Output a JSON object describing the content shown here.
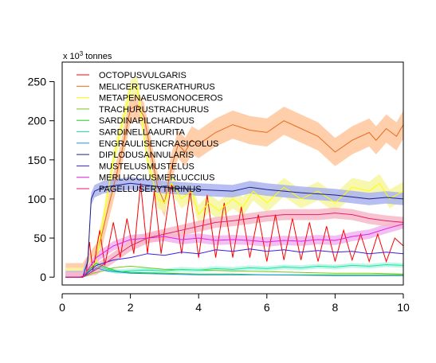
{
  "chart_data": {
    "type": "line",
    "unit_label": {
      "prefix": "x 10",
      "exponent": "3",
      "suffix": " tonnes"
    },
    "xlim": [
      0,
      10
    ],
    "ylim": [
      -10,
      275
    ],
    "x_ticks": [
      0,
      2,
      4,
      6,
      8,
      10
    ],
    "y_ticks": [
      0,
      50,
      100,
      150,
      200,
      250
    ],
    "legend_placement": "top-left",
    "grid": false,
    "series": [
      {
        "name": "OCTOPUSVULGARIS",
        "color": "#ff0000",
        "points": [
          [
            0.1,
            0
          ],
          [
            0.5,
            0
          ],
          [
            0.7,
            2
          ],
          [
            0.8,
            45
          ],
          [
            0.9,
            8
          ],
          [
            1.1,
            60
          ],
          [
            1.25,
            15
          ],
          [
            1.5,
            70
          ],
          [
            1.7,
            25
          ],
          [
            1.9,
            75
          ],
          [
            2.1,
            30
          ],
          [
            2.3,
            120
          ],
          [
            2.5,
            30
          ],
          [
            2.7,
            110
          ],
          [
            2.9,
            30
          ],
          [
            3.2,
            120
          ],
          [
            3.5,
            30
          ],
          [
            3.75,
            110
          ],
          [
            4.0,
            25
          ],
          [
            4.25,
            105
          ],
          [
            4.5,
            25
          ],
          [
            4.75,
            95
          ],
          [
            5.0,
            25
          ],
          [
            5.25,
            90
          ],
          [
            5.5,
            25
          ],
          [
            5.75,
            80
          ],
          [
            6.0,
            20
          ],
          [
            6.25,
            80
          ],
          [
            6.5,
            22
          ],
          [
            6.75,
            75
          ],
          [
            7.0,
            22
          ],
          [
            7.25,
            70
          ],
          [
            7.5,
            20
          ],
          [
            7.75,
            65
          ],
          [
            8.0,
            20
          ],
          [
            8.25,
            60
          ],
          [
            8.5,
            22
          ],
          [
            8.75,
            55
          ],
          [
            9.0,
            20
          ],
          [
            9.25,
            55
          ],
          [
            9.5,
            20
          ],
          [
            9.75,
            50
          ],
          [
            10.0,
            40
          ]
        ]
      },
      {
        "name": "MELICERTUSKERATHURUS",
        "color": "#e66a1a",
        "band": {
          "color": "#ffc79e",
          "halfwidth": 18
        },
        "points": [
          [
            0.1,
            0
          ],
          [
            0.6,
            0
          ],
          [
            1.0,
            25
          ],
          [
            1.3,
            80
          ],
          [
            1.7,
            150
          ],
          [
            2.0,
            215
          ],
          [
            2.2,
            220
          ],
          [
            2.4,
            205
          ],
          [
            2.6,
            160
          ],
          [
            2.8,
            115
          ],
          [
            3.0,
            95
          ],
          [
            3.2,
            140
          ],
          [
            3.4,
            170
          ],
          [
            3.6,
            160
          ],
          [
            3.8,
            175
          ],
          [
            4.0,
            170
          ],
          [
            4.5,
            185
          ],
          [
            5.0,
            195
          ],
          [
            5.5,
            188
          ],
          [
            6.0,
            185
          ],
          [
            6.5,
            200
          ],
          [
            7.0,
            190
          ],
          [
            7.5,
            180
          ],
          [
            8.0,
            160
          ],
          [
            8.5,
            175
          ],
          [
            9.0,
            185
          ],
          [
            9.2,
            175
          ],
          [
            9.5,
            190
          ],
          [
            9.8,
            180
          ],
          [
            10.0,
            195
          ]
        ]
      },
      {
        "name": "METAPENAEUSMONOCEROS",
        "color": "#ffff00",
        "band": {
          "color": "#f6f7a0",
          "halfwidth": 12
        },
        "points": [
          [
            0.1,
            0
          ],
          [
            0.6,
            0
          ],
          [
            1.0,
            20
          ],
          [
            1.5,
            150
          ],
          [
            2.0,
            240
          ],
          [
            2.2,
            245
          ],
          [
            2.5,
            150
          ],
          [
            2.8,
            100
          ],
          [
            3.0,
            95
          ],
          [
            3.2,
            120
          ],
          [
            3.5,
            100
          ],
          [
            3.8,
            110
          ],
          [
            4.0,
            80
          ],
          [
            4.3,
            95
          ],
          [
            4.6,
            85
          ],
          [
            5.0,
            100
          ],
          [
            5.3,
            90
          ],
          [
            5.6,
            110
          ],
          [
            6.0,
            95
          ],
          [
            6.5,
            115
          ],
          [
            7.0,
            100
          ],
          [
            7.5,
            110
          ],
          [
            8.0,
            95
          ],
          [
            8.5,
            115
          ],
          [
            9.0,
            110
          ],
          [
            9.3,
            120
          ],
          [
            9.6,
            100
          ],
          [
            10.0,
            110
          ]
        ]
      },
      {
        "name": "TRACHURUSTRACHURUS",
        "color": "#77c91a",
        "points": [
          [
            0.1,
            0
          ],
          [
            0.6,
            0
          ],
          [
            0.9,
            5
          ],
          [
            1.2,
            8
          ],
          [
            1.5,
            12
          ],
          [
            2.0,
            14
          ],
          [
            2.5,
            12
          ],
          [
            3.0,
            10
          ],
          [
            4.0,
            9
          ],
          [
            5.0,
            8
          ],
          [
            6.0,
            7
          ],
          [
            7.0,
            6
          ],
          [
            8.0,
            5
          ],
          [
            9.0,
            5
          ],
          [
            10.0,
            4
          ]
        ]
      },
      {
        "name": "SARDINAPILCHARDUS",
        "color": "#1ec91e",
        "points": [
          [
            0.1,
            0
          ],
          [
            0.6,
            0
          ],
          [
            0.8,
            10
          ],
          [
            1.0,
            18
          ],
          [
            1.3,
            12
          ],
          [
            1.6,
            8
          ],
          [
            2.0,
            6
          ],
          [
            3.0,
            5
          ],
          [
            4.0,
            4
          ],
          [
            5.0,
            4
          ],
          [
            6.0,
            3
          ],
          [
            7.0,
            3
          ],
          [
            8.0,
            3
          ],
          [
            9.0,
            3
          ],
          [
            10.0,
            3
          ]
        ]
      },
      {
        "name": "SARDINELLAAURITA",
        "color": "#1ee6a0",
        "band": {
          "color": "#b4f5e4",
          "halfwidth": 3
        },
        "points": [
          [
            0.1,
            0
          ],
          [
            0.6,
            0
          ],
          [
            0.8,
            8
          ],
          [
            1.0,
            15
          ],
          [
            1.3,
            10
          ],
          [
            1.6,
            7
          ],
          [
            2.0,
            8
          ],
          [
            2.5,
            9
          ],
          [
            3.0,
            8
          ],
          [
            3.5,
            10
          ],
          [
            4.0,
            9
          ],
          [
            4.5,
            11
          ],
          [
            5.0,
            10
          ],
          [
            5.5,
            12
          ],
          [
            6.0,
            11
          ],
          [
            6.5,
            13
          ],
          [
            7.0,
            12
          ],
          [
            7.5,
            14
          ],
          [
            8.0,
            13
          ],
          [
            8.5,
            15
          ],
          [
            9.0,
            14
          ],
          [
            9.5,
            16
          ],
          [
            10.0,
            15
          ]
        ]
      },
      {
        "name": "ENGRAULISENCRASICOLUS",
        "color": "#1e90e6",
        "points": [
          [
            0.1,
            0
          ],
          [
            0.6,
            0
          ],
          [
            0.8,
            5
          ],
          [
            1.0,
            12
          ],
          [
            1.3,
            8
          ],
          [
            2.0,
            5
          ],
          [
            3.0,
            4
          ],
          [
            4.0,
            3
          ],
          [
            6.0,
            3
          ],
          [
            8.0,
            2
          ],
          [
            10.0,
            2
          ]
        ]
      },
      {
        "name": "DIPLODUSANNULARIS",
        "color": "#1e1e8c",
        "band": {
          "color": "#aab4f0",
          "halfwidth": 8
        },
        "points": [
          [
            0.1,
            0
          ],
          [
            0.6,
            0
          ],
          [
            0.75,
            20
          ],
          [
            0.85,
            100
          ],
          [
            0.95,
            110
          ],
          [
            1.2,
            115
          ],
          [
            2.0,
            120
          ],
          [
            3.0,
            115
          ],
          [
            4.0,
            112
          ],
          [
            5.0,
            110
          ],
          [
            5.5,
            115
          ],
          [
            6.0,
            112
          ],
          [
            7.0,
            108
          ],
          [
            8.0,
            105
          ],
          [
            9.0,
            100
          ],
          [
            9.5,
            102
          ],
          [
            10.0,
            100
          ]
        ]
      },
      {
        "name": "MUSTELUSMUSTELUS",
        "color": "#3a1ee6",
        "points": [
          [
            0.1,
            0
          ],
          [
            0.6,
            0
          ],
          [
            1.0,
            15
          ],
          [
            1.5,
            22
          ],
          [
            2.0,
            25
          ],
          [
            2.5,
            30
          ],
          [
            3.0,
            28
          ],
          [
            3.5,
            32
          ],
          [
            4.0,
            30
          ],
          [
            4.5,
            35
          ],
          [
            5.0,
            33
          ],
          [
            5.5,
            36
          ],
          [
            6.0,
            33
          ],
          [
            6.5,
            35
          ],
          [
            7.0,
            32
          ],
          [
            7.5,
            34
          ],
          [
            8.0,
            32
          ],
          [
            8.5,
            33
          ],
          [
            9.0,
            30
          ],
          [
            9.5,
            32
          ],
          [
            10.0,
            30
          ]
        ]
      },
      {
        "name": "MERLUCCIUSMERLUCCIUS",
        "color": "#e61ee6",
        "band": {
          "color": "#f0b4f0",
          "halfwidth": 6
        },
        "points": [
          [
            0.1,
            0
          ],
          [
            0.6,
            0
          ],
          [
            1.0,
            25
          ],
          [
            1.5,
            40
          ],
          [
            2.0,
            48
          ],
          [
            2.5,
            50
          ],
          [
            3.0,
            52
          ],
          [
            3.5,
            48
          ],
          [
            4.0,
            50
          ],
          [
            4.5,
            47
          ],
          [
            5.0,
            48
          ],
          [
            5.5,
            47
          ],
          [
            6.0,
            45
          ],
          [
            6.5,
            47
          ],
          [
            7.0,
            46
          ],
          [
            7.5,
            48
          ],
          [
            8.0,
            47
          ],
          [
            8.5,
            52
          ],
          [
            9.0,
            55
          ],
          [
            9.5,
            62
          ],
          [
            10.0,
            68
          ]
        ]
      },
      {
        "name": "PAGELLUSERYTHRINUS",
        "color": "#e61e6e",
        "band": {
          "color": "#f7b8c8",
          "halfwidth": 7
        },
        "points": [
          [
            0.1,
            0
          ],
          [
            0.6,
            0
          ],
          [
            1.0,
            10
          ],
          [
            1.5,
            25
          ],
          [
            2.0,
            40
          ],
          [
            2.5,
            50
          ],
          [
            3.0,
            55
          ],
          [
            3.5,
            60
          ],
          [
            4.0,
            65
          ],
          [
            4.5,
            70
          ],
          [
            5.0,
            72
          ],
          [
            5.5,
            75
          ],
          [
            6.0,
            78
          ],
          [
            6.5,
            80
          ],
          [
            7.0,
            80
          ],
          [
            7.5,
            80
          ],
          [
            8.0,
            82
          ],
          [
            8.5,
            80
          ],
          [
            9.0,
            75
          ],
          [
            9.5,
            72
          ],
          [
            10.0,
            70
          ]
        ]
      }
    ]
  }
}
